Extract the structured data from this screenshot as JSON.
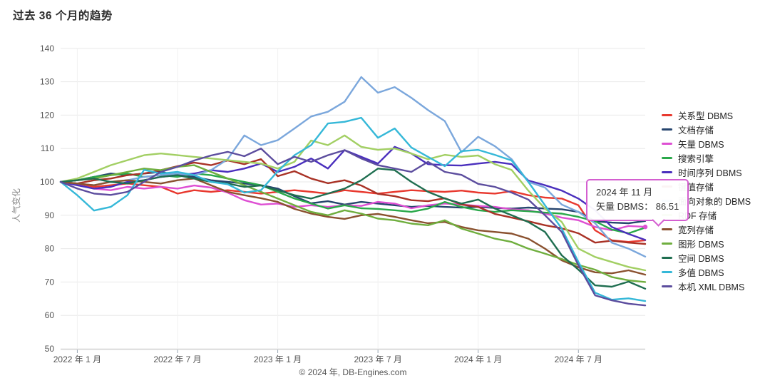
{
  "page": {
    "title": "过去 36 个月的趋势",
    "footer": "© 2024 年, DB-Engines.com"
  },
  "tooltip": {
    "line1": "2024 年 11 月",
    "line2": "矢量 DBMS： 86.51",
    "border_color": "#d45fd0",
    "highlight_series": "矢量 DBMS",
    "highlight_month_index": 35,
    "highlight_value": 86.51
  },
  "chart_data": {
    "type": "line",
    "title": "过去 36 个月的趋势",
    "ylabel": "人气变化",
    "ylim": [
      50,
      140
    ],
    "ytick_step": 10,
    "x_months": 36,
    "x_range": "2021-12 to 2024-11",
    "x_tick_labels": [
      "2022 年 1 月",
      "2022 年 7 月",
      "2023 年 1 月",
      "2023 年 7 月",
      "2024 年 1 月",
      "2024 年 7 月"
    ],
    "x_tick_month_indices": [
      1,
      7,
      13,
      19,
      25,
      31
    ],
    "grid": true,
    "legend_position": "right",
    "colors": {
      "grid_line": "#e8e8e8",
      "axis_line": "#cccccc",
      "tick_text": "#555555",
      "tooltip_border": "#d45fd0"
    },
    "series": [
      {
        "name": "关系型 DBMS",
        "color": "#e8392f",
        "values": [
          100,
          99.5,
          98.5,
          99,
          99.5,
          99,
          98.5,
          96.5,
          97.5,
          97,
          97.5,
          97,
          96.5,
          97,
          97.5,
          97,
          96.5,
          97.5,
          97,
          96.5,
          97,
          97.5,
          97.2,
          97,
          97.4,
          96.8,
          96.5,
          97.2,
          96,
          95.3,
          95,
          93,
          85.5,
          82.5,
          82,
          82.5
        ]
      },
      {
        "name": "文档存储",
        "color": "#26456e",
        "values": [
          100,
          100.5,
          101.5,
          102.5,
          102,
          102.5,
          103,
          102,
          101.5,
          100.5,
          100,
          99.5,
          99,
          98,
          95.7,
          93.6,
          94.2,
          93.2,
          94,
          93.5,
          93,
          92.5,
          92.8,
          92.5,
          92.3,
          92.5,
          92.2,
          92,
          92.3,
          92,
          91.8,
          91,
          88.2,
          87.8,
          87.6,
          88.3
        ]
      },
      {
        "name": "矢量 DBMS",
        "color": "#de4fd3",
        "values": [
          100,
          99,
          98,
          97.5,
          98.5,
          98,
          98.5,
          98,
          98.9,
          98.3,
          96.8,
          94.5,
          93.2,
          93.5,
          92.5,
          93,
          92.5,
          93,
          92.8,
          94,
          93.5,
          92.1,
          93,
          93.5,
          93.2,
          92.8,
          92.5,
          91.8,
          91.5,
          90.5,
          89.3,
          88.5,
          86.5,
          85.5,
          86.8,
          86.51
        ]
      },
      {
        "name": "搜索引擎",
        "color": "#2aa84a",
        "values": [
          100,
          100.5,
          101.5,
          102,
          102.5,
          101.5,
          102,
          101.5,
          102.5,
          102,
          101,
          100,
          99,
          97,
          95,
          93.5,
          92,
          93,
          92.1,
          91.9,
          91.5,
          91,
          92,
          94,
          92.5,
          91.5,
          91,
          91.5,
          91.2,
          90.8,
          90.5,
          89.5,
          88.2,
          85.7,
          84.6,
          86.3
        ]
      },
      {
        "name": "时间序列 DBMS",
        "color": "#4a2fbd",
        "values": [
          100,
          99,
          98,
          98.5,
          100,
          100.5,
          101.5,
          102,
          102.5,
          103.5,
          103,
          104,
          105.5,
          103,
          104.5,
          107,
          104,
          109.5,
          107.5,
          105.5,
          110.5,
          108.5,
          105.3,
          105,
          104.9,
          105.5,
          106,
          105.3,
          100.4,
          99,
          97.4,
          95,
          91.5,
          86.5,
          84.4,
          82.6
        ]
      },
      {
        "name": "键值存储",
        "color": "#a93226",
        "values": [
          100,
          99.5,
          100.5,
          101,
          102,
          102.5,
          103.5,
          104.7,
          105.8,
          105,
          106.4,
          105.3,
          106.8,
          101.7,
          103.2,
          101,
          99.6,
          100.5,
          98.9,
          96.4,
          95.7,
          94.5,
          94.2,
          95.1,
          93.2,
          92.5,
          90.4,
          89.3,
          88.2,
          87,
          86.1,
          84.6,
          81.8,
          82.4,
          81.8,
          81.4
        ]
      },
      {
        "name": "面向对象的 DBMS",
        "color": "#7ba7dc",
        "values": [
          100,
          99.5,
          99,
          100,
          100.5,
          101.5,
          102,
          102.5,
          102,
          103.5,
          106.8,
          113.9,
          111,
          112.5,
          116,
          119.6,
          121,
          124,
          131.4,
          126.7,
          128.4,
          125.2,
          121.5,
          118.2,
          108.9,
          113.5,
          110.7,
          106.8,
          100,
          98.3,
          93.2,
          91,
          87.6,
          81.8,
          80,
          77.6
        ]
      },
      {
        "name": "RDF 存储",
        "color": "#a2cf63",
        "values": [
          100,
          101,
          103,
          105,
          106.5,
          108,
          108.5,
          108,
          107.5,
          107,
          106.5,
          106,
          105.5,
          104,
          106,
          112.4,
          111,
          113.9,
          110.5,
          109.6,
          110,
          108.5,
          106.8,
          108.1,
          107.5,
          107.9,
          105.3,
          103.6,
          97.4,
          92,
          88,
          80,
          77.5,
          76,
          74.5,
          73.5
        ]
      },
      {
        "name": "宽列存储",
        "color": "#8a512f",
        "values": [
          100,
          99.5,
          99,
          100,
          100.5,
          100,
          99.5,
          100.5,
          101,
          99,
          97,
          96,
          95.1,
          94,
          91.9,
          90.5,
          89.5,
          88.9,
          90,
          90.4,
          89.5,
          88.5,
          87.6,
          88,
          86.5,
          85.5,
          85,
          84.5,
          83,
          80,
          76.5,
          74.4,
          72.9,
          72.6,
          73.5,
          72.2
        ]
      },
      {
        "name": "图形 DBMS",
        "color": "#6fae3e",
        "values": [
          100,
          100.5,
          101,
          102,
          103,
          104,
          103.5,
          104.5,
          105,
          103,
          101,
          99,
          97,
          95,
          93,
          91,
          90,
          91.5,
          90.5,
          89,
          88.5,
          87.5,
          87,
          88.5,
          86,
          84.5,
          83,
          82,
          80,
          78.5,
          76.9,
          75.1,
          73.7,
          71.5,
          70.5,
          70
        ]
      },
      {
        "name": "空间 DBMS",
        "color": "#1f6e50",
        "values": [
          100,
          100.5,
          101,
          100,
          99.5,
          100.5,
          101.5,
          102,
          101,
          100,
          99.5,
          98.5,
          98.9,
          97.5,
          96,
          95,
          96.5,
          98,
          100.5,
          104,
          103.5,
          100,
          97,
          95,
          93.5,
          94.7,
          92,
          90,
          88,
          85,
          78,
          73.7,
          69,
          68.6,
          70.1,
          68
        ]
      },
      {
        "name": "多值 DBMS",
        "color": "#35b8d8",
        "values": [
          100,
          96,
          91.4,
          92.5,
          96,
          103.6,
          102.5,
          103,
          102,
          100,
          99.3,
          96.8,
          97.5,
          103.2,
          108,
          111,
          117.5,
          118,
          119.2,
          113.2,
          116,
          110.3,
          107.5,
          104.7,
          109.2,
          109.6,
          108.1,
          106.4,
          100,
          93,
          86,
          76,
          66.8,
          64.7,
          65.1,
          64.3
        ]
      },
      {
        "name": "本机 XML DBMS",
        "color": "#5c4d9e",
        "values": [
          100,
          98,
          96.5,
          96.1,
          97,
          100,
          103,
          104.5,
          106.4,
          107.9,
          109,
          107.7,
          110,
          105.3,
          107.5,
          106,
          108,
          109.5,
          107,
          105,
          104,
          103,
          106,
          103,
          102.1,
          99.4,
          98.5,
          96.8,
          94.7,
          90,
          85,
          75,
          66,
          64.5,
          63.5,
          63
        ]
      }
    ]
  }
}
